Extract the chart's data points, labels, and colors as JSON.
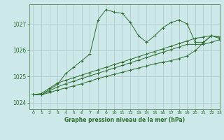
{
  "title": "Graphe pression niveau de la mer (hPa)",
  "bg_color": "#cce8e8",
  "grid_color": "#b0cccc",
  "line_color": "#2d6e2d",
  "marker": "+",
  "ylim": [
    1023.75,
    1027.75
  ],
  "xlim": [
    -0.5,
    23
  ],
  "yticks": [
    1024,
    1025,
    1026,
    1027
  ],
  "xticks": [
    0,
    1,
    2,
    3,
    4,
    5,
    6,
    7,
    8,
    9,
    10,
    11,
    12,
    13,
    14,
    15,
    16,
    17,
    18,
    19,
    20,
    21,
    22,
    23
  ],
  "series": [
    [
      1024.3,
      1024.3,
      1024.5,
      1024.7,
      1025.1,
      1025.35,
      1025.6,
      1025.85,
      1027.15,
      1027.55,
      1027.45,
      1027.4,
      1027.05,
      1026.55,
      1026.3,
      1026.55,
      1026.85,
      1027.05,
      1027.15,
      1027.0,
      1026.3,
      1026.3,
      1026.55,
      1026.5
    ],
    [
      1024.3,
      1024.35,
      1024.55,
      1024.75,
      1024.85,
      1024.95,
      1025.05,
      1025.15,
      1025.25,
      1025.35,
      1025.45,
      1025.55,
      1025.65,
      1025.75,
      1025.85,
      1025.95,
      1026.05,
      1026.15,
      1026.25,
      1026.35,
      1026.45,
      1026.5,
      1026.55,
      1026.5
    ],
    [
      1024.3,
      1024.3,
      1024.45,
      1024.6,
      1024.72,
      1024.82,
      1024.92,
      1025.02,
      1025.12,
      1025.22,
      1025.32,
      1025.42,
      1025.52,
      1025.62,
      1025.72,
      1025.82,
      1025.92,
      1026.02,
      1026.12,
      1026.22,
      1026.22,
      1026.22,
      1026.3,
      1026.4
    ],
    [
      1024.3,
      1024.3,
      1024.38,
      1024.48,
      1024.56,
      1024.64,
      1024.72,
      1024.82,
      1024.92,
      1025.0,
      1025.08,
      1025.16,
      1025.24,
      1025.32,
      1025.4,
      1025.48,
      1025.54,
      1025.6,
      1025.68,
      1025.78,
      1025.98,
      1026.28,
      1026.55,
      1026.45
    ]
  ]
}
